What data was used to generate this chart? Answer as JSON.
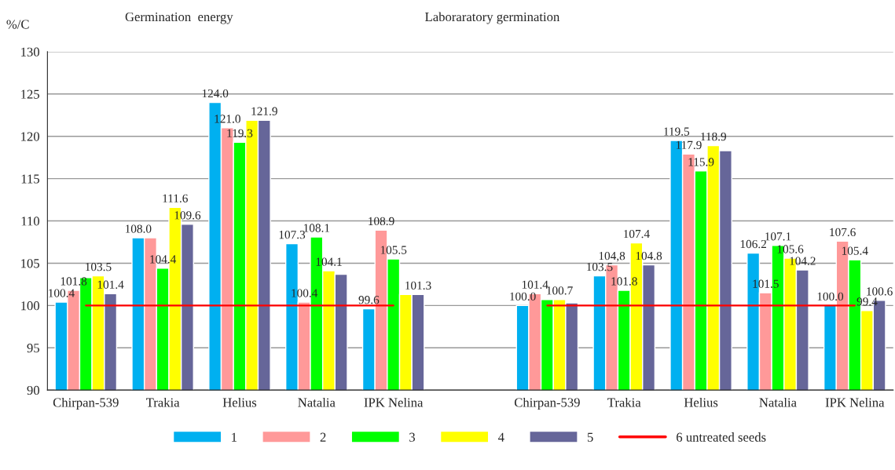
{
  "chart_data": {
    "type": "bar",
    "ylabel": "%/C",
    "annotations": [
      "Germination  energy",
      "Laboraratory germination"
    ],
    "categories": [
      "Chirpan-539",
      "Trakia",
      "Helius",
      "Natalia",
      "IPK Nelina",
      null,
      "Chirpan-539",
      "Trakia",
      "Helius",
      "Natalia",
      "IPK Nelina"
    ],
    "ylim": [
      90,
      130
    ],
    "yticks": [
      90,
      95,
      100,
      105,
      110,
      115,
      120,
      125,
      130
    ],
    "grid": "y",
    "legend": "bottom",
    "series": [
      {
        "name": "1",
        "color": "#00b0f0",
        "values": [
          100.4,
          108.0,
          124.0,
          107.3,
          99.6,
          null,
          100.0,
          103.5,
          119.5,
          106.2,
          100.0
        ],
        "value_labels": [
          "100.4",
          "108.0",
          "124.0",
          "107.3",
          "99.6",
          null,
          "100.0",
          "103.5",
          "119.5",
          "106.2",
          "100.0"
        ]
      },
      {
        "name": "2",
        "color": "#ff9999",
        "values": [
          101.8,
          108.0,
          121.0,
          100.4,
          108.9,
          null,
          101.4,
          104.8,
          117.9,
          101.5,
          107.6
        ],
        "value_labels": [
          "101.8",
          null,
          "121.0",
          "100.4",
          "108.9",
          null,
          "101.4",
          "104,8",
          "117.9",
          "101.5",
          "107.6"
        ]
      },
      {
        "name": "3",
        "color": "#00ff00",
        "values": [
          103.3,
          104.4,
          119.3,
          108.1,
          105.5,
          null,
          100.7,
          101.8,
          115.9,
          107.1,
          105.4
        ],
        "value_labels": [
          null,
          "104.4",
          "119.3",
          "108.1",
          "105.5",
          null,
          null,
          "101.8",
          "115.9",
          "107.1",
          "105.4"
        ]
      },
      {
        "name": "4",
        "color": "#ffff00",
        "values": [
          103.5,
          111.6,
          121.9,
          104.1,
          101.3,
          null,
          100.7,
          107.4,
          118.9,
          105.6,
          99.4
        ],
        "value_labels": [
          "103.5",
          "111.6",
          null,
          "104.1",
          null,
          null,
          "100.7",
          "107.4",
          "118.9",
          "105.6",
          "99.4"
        ]
      },
      {
        "name": "5",
        "color": "#666699",
        "values": [
          101.4,
          109.6,
          121.9,
          103.7,
          101.3,
          null,
          100.3,
          104.8,
          118.3,
          104.2,
          100.6
        ],
        "value_labels": [
          "101.4",
          "109.6",
          "121.9",
          null,
          "101.3",
          null,
          null,
          "104.8",
          null,
          "104.2",
          "100.6"
        ]
      },
      {
        "name": "6 untreated seeds",
        "type": "line",
        "color": "#ff0000",
        "values": [
          100,
          100,
          100,
          100,
          100,
          null,
          100,
          100,
          100,
          100,
          100
        ]
      }
    ]
  }
}
